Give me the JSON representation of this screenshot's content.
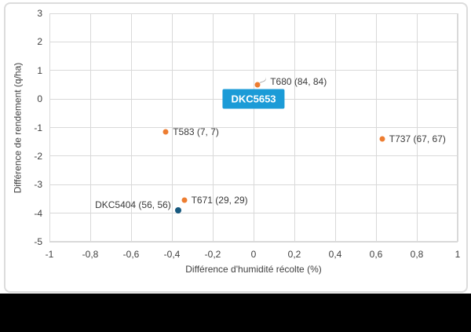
{
  "chart_data": {
    "type": "scatter",
    "title": "",
    "xlabel": "Différence d'humidité récolte (%)",
    "ylabel": "Différence de rendement (q/ha)",
    "xlim": [
      -1,
      1
    ],
    "ylim": [
      -5,
      3
    ],
    "grid": true,
    "legend": "none",
    "xticks": {
      "values": [
        -1,
        -0.8,
        -0.6,
        -0.4,
        -0.2,
        0,
        0.2,
        0.4,
        0.6,
        0.8,
        1
      ],
      "labels": [
        "-1",
        "-0,8",
        "-0,6",
        "-0,4",
        "-0,2",
        "0",
        "0,2",
        "0,4",
        "0,6",
        "0,8",
        "1"
      ]
    },
    "yticks": {
      "values": [
        3,
        2,
        1,
        0,
        -1,
        -2,
        -3,
        -4,
        -5
      ],
      "labels": [
        "3",
        "2",
        "1",
        "0",
        "-1",
        "-2",
        "-3",
        "-4",
        "-5"
      ]
    },
    "series": [
      {
        "color": "#ED7D31",
        "marker_size": 7,
        "points": [
          {
            "label": "T680 (84, 84)",
            "x": 0.02,
            "y": 0.5,
            "label_side": "right",
            "label_dy": -4,
            "label_gap": 16,
            "leader": true
          },
          {
            "label": "T583 (7, 7)",
            "x": -0.43,
            "y": -1.15,
            "label_side": "right",
            "label_dy": 0,
            "label_gap": 9
          },
          {
            "label": "T737 (67, 67)",
            "x": 0.63,
            "y": -1.4,
            "label_side": "right",
            "label_dy": 0,
            "label_gap": 9
          },
          {
            "label": "T671 (29, 29)",
            "x": -0.34,
            "y": -3.55,
            "label_side": "right",
            "label_dy": 0,
            "label_gap": 9
          }
        ]
      },
      {
        "color": "#17597F",
        "marker_size": 8,
        "points": [
          {
            "label": "DKC5404 (56, 56)",
            "x": -0.37,
            "y": -3.9,
            "label_side": "left",
            "label_dy": -7,
            "label_gap": 9
          }
        ]
      }
    ],
    "reference_point": {
      "label": "DKC5653",
      "x": 0,
      "y": 0,
      "box_color": "#1B9BD7",
      "text_color": "#FFFFFF"
    },
    "colors": {
      "gridline": "#d9d9d9",
      "axis_text": "#404040",
      "data_label": "#3a3a3a"
    }
  }
}
